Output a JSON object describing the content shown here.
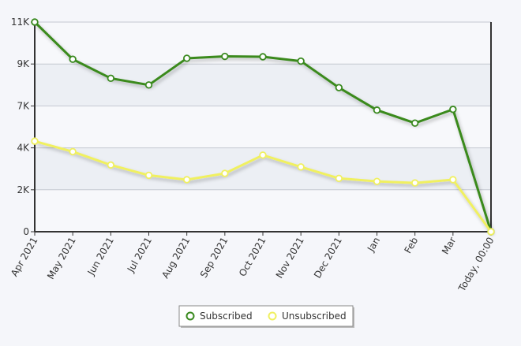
{
  "chart_data": {
    "type": "line",
    "title": "",
    "xlabel": "",
    "ylabel": "",
    "x": [
      "Apr 2021",
      "May 2021",
      "Jun 2021",
      "Jul 2021",
      "Aug 2021",
      "Sep 2021",
      "Oct 2021",
      "Nov 2021",
      "Dec 2021",
      "Jan",
      "Feb",
      "Mar",
      "Today, 00:00"
    ],
    "y_ticks": [
      "0",
      "2K",
      "4K",
      "7K",
      "9K",
      "11K"
    ],
    "y_tick_values": [
      0,
      2200,
      4400,
      6600,
      8800,
      11000
    ],
    "ylim": [
      0,
      11000
    ],
    "grid": true,
    "legend": "bottom-center",
    "series": [
      {
        "name": "Subscribed",
        "color": "#3a8a1f",
        "values": [
          11000,
          9050,
          8050,
          7700,
          9100,
          9200,
          9180,
          8950,
          7560,
          6380,
          5700,
          6420,
          0
        ]
      },
      {
        "name": "Unsubscribed",
        "color": "#f0f060",
        "values": [
          4750,
          4200,
          3500,
          2960,
          2730,
          3060,
          4020,
          3400,
          2800,
          2640,
          2560,
          2730,
          0
        ]
      }
    ]
  }
}
